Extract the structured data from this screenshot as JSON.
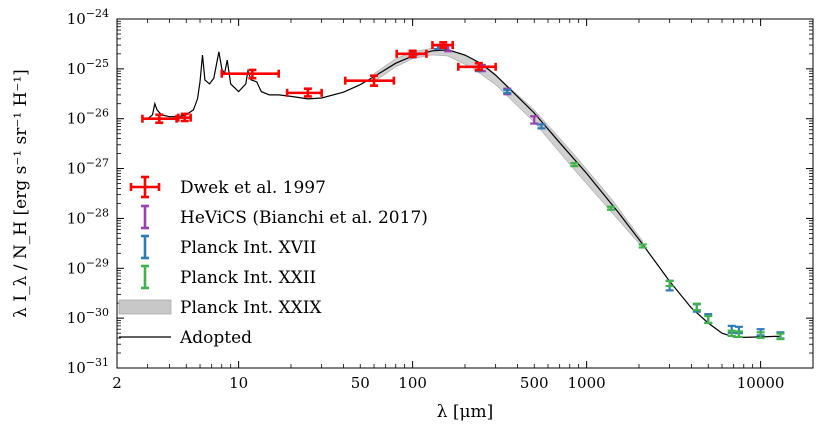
{
  "chart_data": {
    "type": "scatter",
    "title": "",
    "xlabel": "λ [μm]",
    "ylabel": "λ I_λ / N_H [erg s⁻¹ sr⁻¹ H⁻¹]",
    "xscale": "log",
    "yscale": "log",
    "xlim": [
      2,
      20000
    ],
    "ylim": [
      1e-31,
      1e-24
    ],
    "x_ticks": [
      {
        "value": 2,
        "label": "2"
      },
      {
        "value": 10,
        "label": "10"
      },
      {
        "value": 50,
        "label": "50"
      },
      {
        "value": 100,
        "label": "100"
      },
      {
        "value": 500,
        "label": "500"
      },
      {
        "value": 1000,
        "label": "1000"
      },
      {
        "value": 10000,
        "label": "10000"
      }
    ],
    "y_ticks": [
      {
        "exp": -31,
        "base": "10",
        "sup": "−31"
      },
      {
        "exp": -30,
        "base": "10",
        "sup": "−30"
      },
      {
        "exp": -29,
        "base": "10",
        "sup": "−29"
      },
      {
        "exp": -28,
        "base": "10",
        "sup": "−28"
      },
      {
        "exp": -27,
        "base": "10",
        "sup": "−27"
      },
      {
        "exp": -26,
        "base": "10",
        "sup": "−26"
      },
      {
        "exp": -25,
        "base": "10",
        "sup": "−25"
      },
      {
        "exp": -24,
        "base": "10",
        "sup": "−24"
      }
    ],
    "legend": {
      "placement": "lower-left",
      "entries": [
        {
          "label": "Dwek et al. 1997",
          "style": "errorbar-xy",
          "color": "#ff0000"
        },
        {
          "label": "HeViCS (Bianchi et al. 2017)",
          "style": "errorbar-y",
          "color": "#9b3fb3"
        },
        {
          "label": "Planck Int. XVII",
          "style": "errorbar-y",
          "color": "#2e7bb6"
        },
        {
          "label": "Planck Int. XXII",
          "style": "errorbar-y",
          "color": "#3fb44a"
        },
        {
          "label": "Planck Int. XXIX",
          "style": "band",
          "color": "#c8c8c8"
        },
        {
          "label": "Adopted",
          "style": "line",
          "color": "#000000"
        }
      ]
    },
    "series": [
      {
        "name": "Dwek et al. 1997",
        "color": "#ff0000",
        "points": [
          {
            "x": 3.5,
            "y": 1e-26,
            "xerr": [
              2.8,
              4.4
            ],
            "yerr": [
              8.3e-27,
              1.2e-26
            ]
          },
          {
            "x": 4.9,
            "y": 1.05e-26,
            "xerr": [
              4.5,
              5.3
            ],
            "yerr": [
              9e-27,
              1.25e-26
            ]
          },
          {
            "x": 12,
            "y": 8e-26,
            "xerr": [
              8,
              17
            ],
            "yerr": [
              6.5e-26,
              9.5e-26
            ]
          },
          {
            "x": 25,
            "y": 3.3e-26,
            "xerr": [
              19,
              30
            ],
            "yerr": [
              2.8e-26,
              4e-26
            ]
          },
          {
            "x": 60,
            "y": 5.8e-26,
            "xerr": [
              41,
              78
            ],
            "yerr": [
              4.6e-26,
              7.3e-26
            ]
          },
          {
            "x": 100,
            "y": 2e-25,
            "xerr": [
              81,
              120
            ],
            "yerr": [
              1.75e-25,
              2.3e-25
            ]
          },
          {
            "x": 150,
            "y": 3e-25,
            "xerr": [
              130,
              170
            ],
            "yerr": [
              2.65e-25,
              3.4e-25
            ]
          },
          {
            "x": 240,
            "y": 1.1e-25,
            "xerr": [
              183,
              300
            ],
            "yerr": [
              9.5e-26,
              1.3e-25
            ]
          }
        ]
      },
      {
        "name": "HeViCS (Bianchi et al. 2017)",
        "color": "#9b3fb3",
        "points": [
          {
            "x": 100,
            "y": 1.95e-25,
            "yerr": [
              1.7e-25,
              2.25e-25
            ]
          },
          {
            "x": 160,
            "y": 2.6e-25,
            "yerr": [
              2.25e-25,
              3e-25
            ]
          },
          {
            "x": 250,
            "y": 1.05e-25,
            "yerr": [
              9e-26,
              1.2e-25
            ]
          },
          {
            "x": 350,
            "y": 3.5e-26,
            "yerr": [
              3.1e-26,
              4e-26
            ]
          },
          {
            "x": 500,
            "y": 9.5e-27,
            "yerr": [
              8e-27,
              1.12e-26
            ]
          }
        ]
      },
      {
        "name": "Planck Int. XVII",
        "color": "#2e7bb6",
        "points": [
          {
            "x": 100,
            "y": 2e-25,
            "yerr": [
              1.85e-25,
              2.2e-25
            ]
          },
          {
            "x": 140,
            "y": 2.7e-25,
            "yerr": [
              2.5e-25,
              2.95e-25
            ]
          },
          {
            "x": 240,
            "y": 1e-25,
            "yerr": [
              9e-26,
              1.1e-25
            ]
          },
          {
            "x": 350,
            "y": 3.5e-26,
            "yerr": [
              3.25e-26,
              3.8e-26
            ]
          },
          {
            "x": 550,
            "y": 7e-27,
            "yerr": [
              6.4e-27,
              7.7e-27
            ]
          },
          {
            "x": 3000,
            "y": 4.5e-30,
            "yerr": [
              3.6e-30,
              5.6e-30
            ]
          },
          {
            "x": 4300,
            "y": 1.6e-30,
            "yerr": [
              1.35e-30,
              1.9e-30
            ]
          },
          {
            "x": 5000,
            "y": 1e-30,
            "yerr": [
              8e-31,
              1.2e-30
            ]
          },
          {
            "x": 6820,
            "y": 6e-31,
            "yerr": [
              5.1e-31,
              7e-31
            ]
          },
          {
            "x": 7500,
            "y": 5.8e-31,
            "yerr": [
              5e-31,
              6.7e-31
            ]
          },
          {
            "x": 10000,
            "y": 5.2e-31,
            "yerr": [
              4.5e-31,
              6e-31
            ]
          },
          {
            "x": 13000,
            "y": 4.5e-31,
            "yerr": [
              3.9e-31,
              5.2e-31
            ]
          }
        ]
      },
      {
        "name": "Planck Int. XXII",
        "color": "#3fb44a",
        "points": [
          {
            "x": 850,
            "y": 1.2e-27,
            "yerr": [
              1.12e-27,
              1.28e-27
            ]
          },
          {
            "x": 1380,
            "y": 1.6e-28,
            "yerr": [
              1.5e-28,
              1.7e-28
            ]
          },
          {
            "x": 2100,
            "y": 2.8e-29,
            "yerr": [
              2.65e-29,
              2.95e-29
            ]
          },
          {
            "x": 3000,
            "y": 5e-30,
            "yerr": [
              4.4e-30,
              5.6e-30
            ]
          },
          {
            "x": 4300,
            "y": 1.7e-30,
            "yerr": [
              1.45e-30,
              1.95e-30
            ]
          },
          {
            "x": 5000,
            "y": 9.5e-31,
            "yerr": [
              8e-31,
              1.1e-30
            ]
          },
          {
            "x": 6820,
            "y": 5e-31,
            "yerr": [
              4.4e-31,
              5.6e-31
            ]
          },
          {
            "x": 7500,
            "y": 4.8e-31,
            "yerr": [
              4.2e-31,
              5.4e-31
            ]
          },
          {
            "x": 10000,
            "y": 4.6e-31,
            "yerr": [
              4e-31,
              5.2e-31
            ]
          },
          {
            "x": 13000,
            "y": 4.3e-31,
            "yerr": [
              3.8e-31,
              4.9e-31
            ]
          }
        ]
      }
    ],
    "band": {
      "name": "Planck Int. XXIX",
      "color": "#c8c8c8",
      "points": [
        {
          "x": 60,
          "y_low": 5.5e-26,
          "y_high": 8e-26
        },
        {
          "x": 80,
          "y_low": 1.1e-25,
          "y_high": 1.6e-25
        },
        {
          "x": 100,
          "y_low": 1.6e-25,
          "y_high": 2.2e-25
        },
        {
          "x": 130,
          "y_low": 1.9e-25,
          "y_high": 2.6e-25
        },
        {
          "x": 160,
          "y_low": 1.8e-25,
          "y_high": 2.5e-25
        },
        {
          "x": 220,
          "y_low": 1.05e-25,
          "y_high": 1.6e-25
        },
        {
          "x": 300,
          "y_low": 4.8e-26,
          "y_high": 7.5e-26
        },
        {
          "x": 500,
          "y_low": 8.5e-27,
          "y_high": 1.5e-26
        },
        {
          "x": 850,
          "y_low": 9.5e-28,
          "y_high": 1.9e-27
        },
        {
          "x": 1400,
          "y_low": 1.3e-28,
          "y_high": 2.4e-28
        },
        {
          "x": 2100,
          "y_low": 2.6e-29,
          "y_high": 3.5e-29
        }
      ]
    },
    "adopted_curve": {
      "name": "Adopted",
      "color": "#000000",
      "points": [
        [
          2.8,
          1e-26
        ],
        [
          3.0,
          1e-26
        ],
        [
          3.2,
          1.2e-26
        ],
        [
          3.3,
          2e-26
        ],
        [
          3.4,
          1.5e-26
        ],
        [
          3.6,
          1.2e-26
        ],
        [
          4.0,
          1.1e-26
        ],
        [
          4.5,
          1.1e-26
        ],
        [
          5.0,
          1.2e-26
        ],
        [
          5.5,
          1.5e-26
        ],
        [
          5.8,
          2.5e-26
        ],
        [
          6.0,
          5.5e-26
        ],
        [
          6.2,
          1.9e-25
        ],
        [
          6.4,
          6e-26
        ],
        [
          6.8,
          5e-26
        ],
        [
          7.2,
          6.5e-26
        ],
        [
          7.7,
          2.2e-25
        ],
        [
          8.0,
          1e-25
        ],
        [
          8.3,
          8e-26
        ],
        [
          8.6,
          1.5e-25
        ],
        [
          9.0,
          5e-26
        ],
        [
          10,
          3.5e-26
        ],
        [
          11.0,
          5e-26
        ],
        [
          11.3,
          9e-26
        ],
        [
          11.8,
          6e-26
        ],
        [
          12.7,
          5.5e-26
        ],
        [
          13.5,
          3.5e-26
        ],
        [
          15,
          3e-26
        ],
        [
          17,
          3e-26
        ],
        [
          20,
          2.8e-26
        ],
        [
          25,
          2.5e-26
        ],
        [
          30,
          2.6e-26
        ],
        [
          40,
          3.4e-26
        ],
        [
          50,
          4.8e-26
        ],
        [
          60,
          7e-26
        ],
        [
          80,
          1.3e-25
        ],
        [
          100,
          1.8e-25
        ],
        [
          130,
          2.3e-25
        ],
        [
          160,
          2.4e-25
        ],
        [
          200,
          1.9e-25
        ],
        [
          250,
          1.25e-25
        ],
        [
          300,
          7.5e-26
        ],
        [
          400,
          2.8e-26
        ],
        [
          500,
          1.3e-26
        ],
        [
          700,
          3.3e-27
        ],
        [
          1000,
          8e-28
        ],
        [
          1500,
          1.4e-28
        ],
        [
          2000,
          3.8e-29
        ],
        [
          3000,
          5.5e-30
        ],
        [
          4000,
          1.6e-30
        ],
        [
          5000,
          8e-31
        ],
        [
          6000,
          5e-31
        ],
        [
          7000,
          4.2e-31
        ],
        [
          8000,
          4.1e-31
        ],
        [
          10000,
          4.2e-31
        ],
        [
          12000,
          4.3e-31
        ],
        [
          13000,
          4.3e-31
        ]
      ]
    }
  }
}
